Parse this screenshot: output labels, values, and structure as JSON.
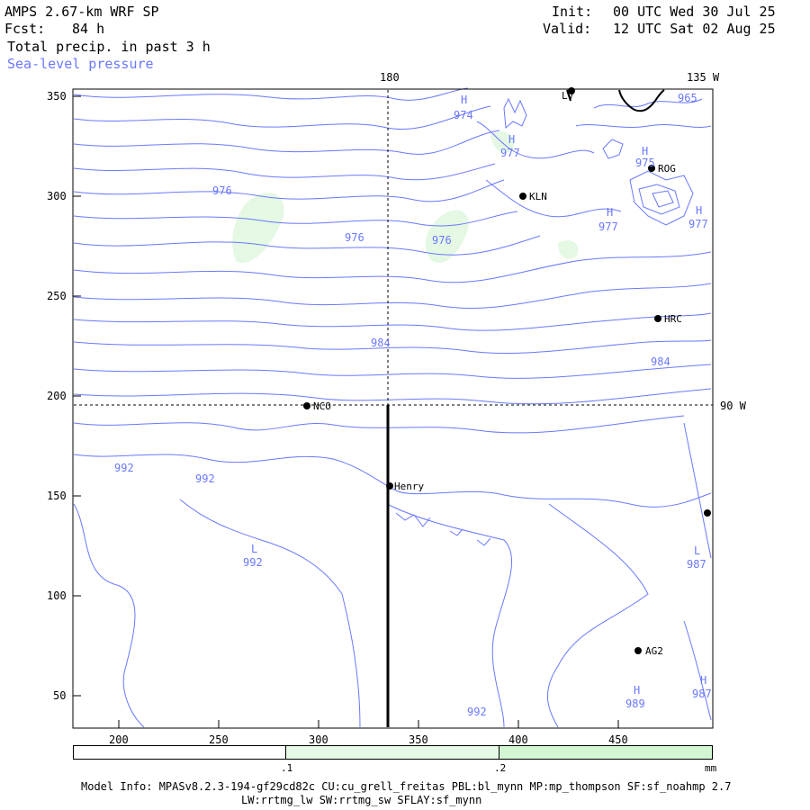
{
  "header": {
    "model": "AMPS 2.67-km WRF SP",
    "fcst_label": "Fcst:",
    "fcst_value": "84 h",
    "field": "Total precip. in past 3 h",
    "overlay": "Sea-level pressure",
    "init_label": "Init:",
    "init": "00 UTC Wed 30 Jul 25",
    "valid_label": "Valid:",
    "valid": "12 UTC Sat 02 Aug 25"
  },
  "grid_labels": {
    "lon_180": "180",
    "lon_135w": "135 W",
    "lon_90w": "90 W"
  },
  "axes": {
    "x_ticks": [
      "200",
      "250",
      "300",
      "350",
      "400",
      "450"
    ],
    "y_ticks": [
      "350",
      "300",
      "250",
      "200",
      "150",
      "100",
      "50"
    ]
  },
  "stations": [
    {
      "id": "LV",
      "label": "LV"
    },
    {
      "id": "ROG",
      "label": "ROG"
    },
    {
      "id": "KLN",
      "label": "KLN"
    },
    {
      "id": "HRC",
      "label": "HRC"
    },
    {
      "id": "NCO",
      "label": "NCO"
    },
    {
      "id": "Henry",
      "label": "Henry"
    },
    {
      "id": "AG2",
      "label": "AG2"
    },
    {
      "id": "east",
      "label": ""
    }
  ],
  "contour_labels": [
    "974",
    "977",
    "975",
    "965",
    "976",
    "976",
    "976",
    "977",
    "977",
    "984",
    "984",
    "992",
    "992",
    "992",
    "987",
    "989",
    "987",
    "992"
  ],
  "pressure_centers": [
    "H",
    "H",
    "H",
    "H",
    "H",
    "L",
    "L",
    "H",
    "H"
  ],
  "colorbar": {
    "ticks": [
      ".1",
      ".2"
    ],
    "unit": "mm",
    "colors": [
      "#ffffff",
      "#e6f8e6",
      "#d2f7d2"
    ]
  },
  "footer": {
    "line1": "Model Info: MPASv8.2.3-194-gf29cd82c CU:cu_grell_freitas PBL:bl_mynn MP:mp_thompson SF:sf_noahmp 2.7",
    "line2": "LW:rrtmg_lw SW:rrtmg_sw SFLAY:sf_mynn"
  }
}
